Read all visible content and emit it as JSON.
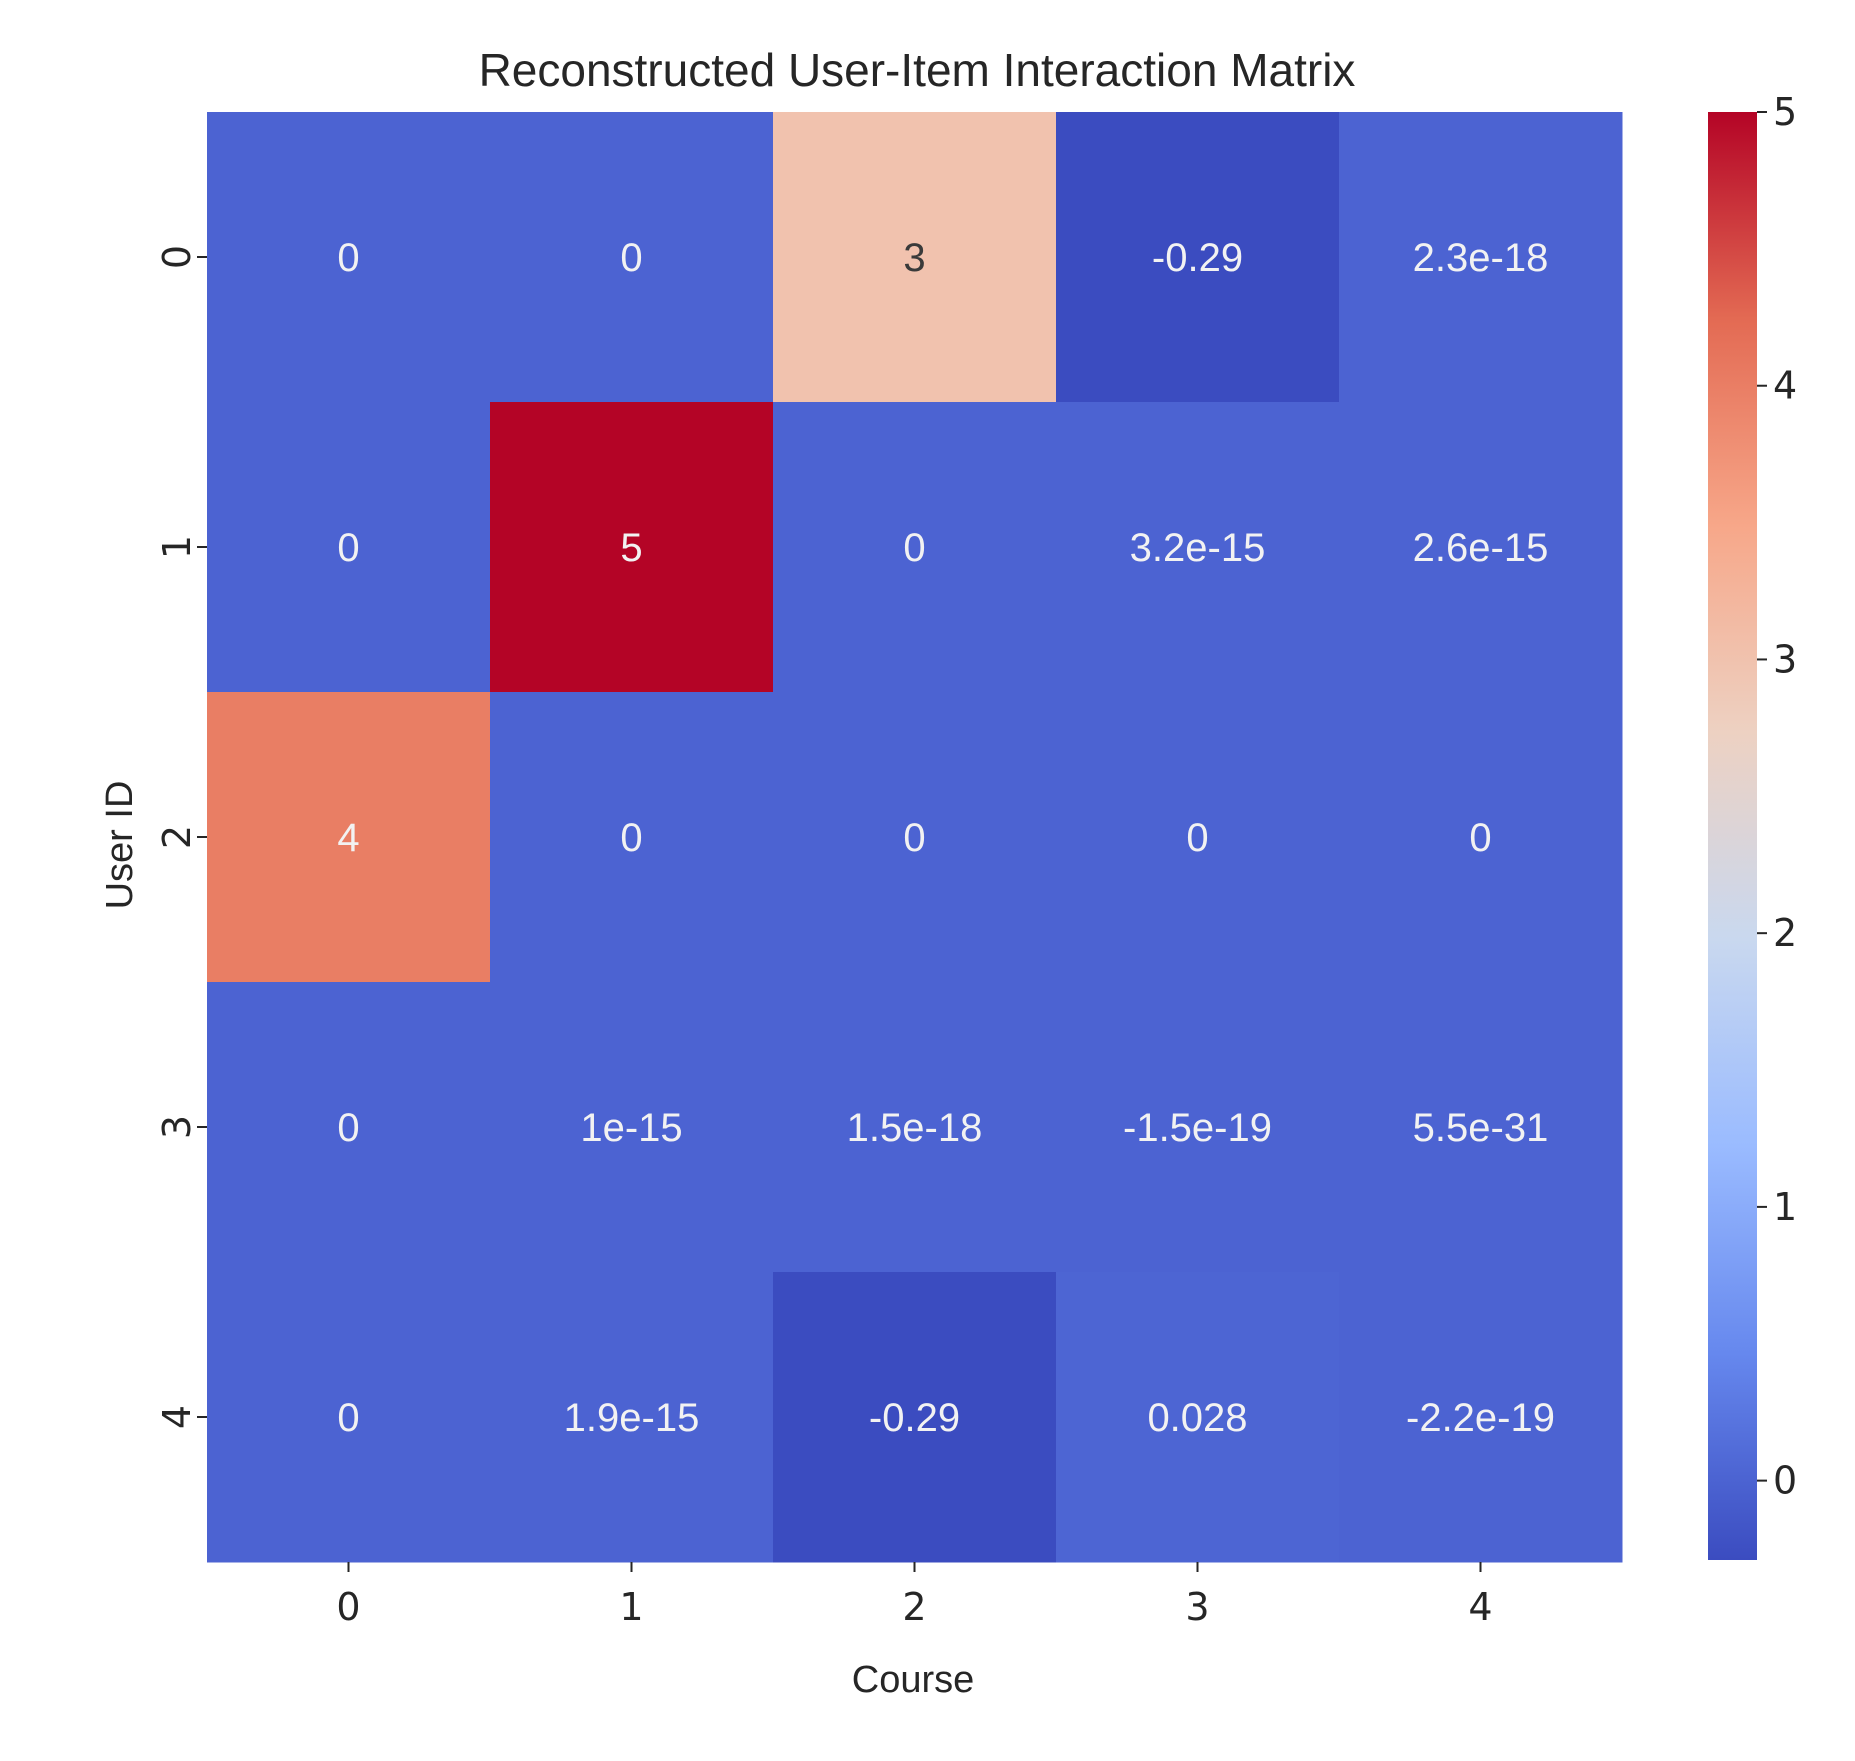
{
  "chart_data": {
    "type": "heatmap",
    "title": "Reconstructed User-Item Interaction Matrix",
    "xlabel": "Course",
    "ylabel": "User ID",
    "x_ticks": [
      "0",
      "1",
      "2",
      "3",
      "4"
    ],
    "y_ticks": [
      "0",
      "1",
      "2",
      "3",
      "4"
    ],
    "values": [
      [
        0,
        0,
        3,
        -0.29,
        2.3e-18
      ],
      [
        0,
        5,
        0,
        3.2e-15,
        2.6e-15
      ],
      [
        4,
        0,
        0,
        0,
        0
      ],
      [
        0,
        1e-15,
        1.5e-18,
        -1.5e-19,
        5.5e-31
      ],
      [
        0,
        1.9e-15,
        -0.29,
        0.028,
        -2.2e-19
      ]
    ],
    "annotations": [
      [
        "0",
        "0",
        "3",
        "-0.29",
        "2.3e-18"
      ],
      [
        "0",
        "5",
        "0",
        "3.2e-15",
        "2.6e-15"
      ],
      [
        "4",
        "0",
        "0",
        "0",
        "0"
      ],
      [
        "0",
        "1e-15",
        "1.5e-18",
        "-1.5e-19",
        "5.5e-31"
      ],
      [
        "0",
        "1.9e-15",
        "-0.29",
        "0.028",
        "-2.2e-19"
      ]
    ],
    "colormap": "coolwarm",
    "colormap_stops": [
      "#3b4cc0",
      "#6688ee",
      "#9abbff",
      "#c9d8ef",
      "#edd1c2",
      "#f7a789",
      "#e36a53",
      "#b40426"
    ],
    "vmin": -0.29,
    "vmax": 5,
    "colorbar_ticks": [
      "0",
      "1",
      "2",
      "3",
      "4",
      "5"
    ],
    "colorbar_tick_values": [
      0,
      1,
      2,
      3,
      4,
      5
    ]
  }
}
